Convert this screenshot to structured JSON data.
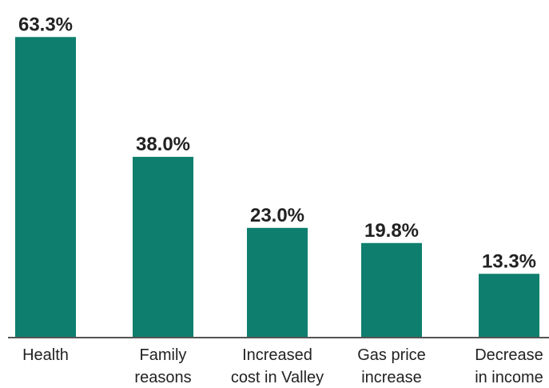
{
  "chart_data": {
    "type": "bar",
    "categories": [
      [
        "Health"
      ],
      [
        "Family",
        "reasons"
      ],
      [
        "Increased",
        "cost in Valley"
      ],
      [
        "Gas price",
        "increase"
      ],
      [
        "Decrease",
        "in income"
      ]
    ],
    "values": [
      63.3,
      38.0,
      23.0,
      19.8,
      13.3
    ],
    "value_labels": [
      "63.3%",
      "38.0%",
      "23.0%",
      "19.8%",
      "13.3%"
    ],
    "color": "#0e7f6e"
  }
}
